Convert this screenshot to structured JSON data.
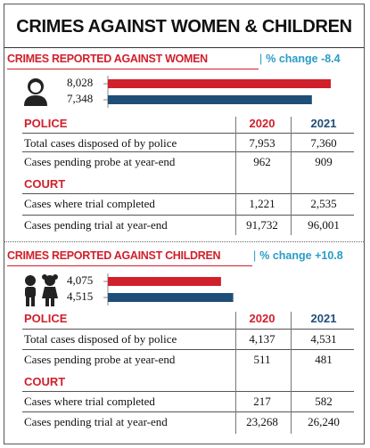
{
  "title": "CRIMES AGAINST WOMEN & CHILDREN",
  "colors": {
    "red": "#d0202c",
    "blue": "#1f4e79",
    "teal": "#2a9cc8"
  },
  "women": {
    "heading": "CRIMES REPORTED AGAINST WOMEN",
    "pct_change": "% change -8.4",
    "icon": "woman-icon",
    "value_labels": [
      "8,028",
      "7,348"
    ],
    "police": {
      "label": "POLICE",
      "years": [
        "2020",
        "2021"
      ],
      "rows": [
        {
          "label": "Total cases disposed of by police",
          "values": [
            "7,953",
            "7,360"
          ]
        },
        {
          "label": "Cases pending probe at year-end",
          "values": [
            "962",
            "909"
          ]
        }
      ]
    },
    "court": {
      "label": "COURT",
      "rows": [
        {
          "label": "Cases where trial completed",
          "values": [
            "1,221",
            "2,535"
          ]
        },
        {
          "label": "Cases pending trial at year-end",
          "values": [
            "91,732",
            "96,001"
          ]
        }
      ]
    }
  },
  "children": {
    "heading": "CRIMES REPORTED AGAINST CHILDREN",
    "pct_change": "% change +10.8",
    "icon": "children-icon",
    "value_labels": [
      "4,075",
      "4,515"
    ],
    "police": {
      "label": "POLICE",
      "years": [
        "2020",
        "2021"
      ],
      "rows": [
        {
          "label": "Total cases disposed of by police",
          "values": [
            "4,137",
            "4,531"
          ]
        },
        {
          "label": "Cases pending probe at year-end",
          "values": [
            "511",
            "481"
          ]
        }
      ]
    },
    "court": {
      "label": "COURT",
      "rows": [
        {
          "label": "Cases where trial completed",
          "values": [
            "217",
            "582"
          ]
        },
        {
          "label": "Cases pending trial at year-end",
          "values": [
            "23,268",
            "26,240"
          ]
        }
      ]
    }
  },
  "chart_data": [
    {
      "type": "bar",
      "orientation": "horizontal",
      "categories": [
        "2020",
        "2021"
      ],
      "values": [
        8028,
        7348
      ],
      "colors": [
        "#d0202c",
        "#1f4e79"
      ]
    },
    {
      "type": "bar",
      "orientation": "horizontal",
      "categories": [
        "2020",
        "2021"
      ],
      "values": [
        4075,
        4515
      ],
      "colors": [
        "#d0202c",
        "#1f4e79"
      ]
    }
  ]
}
